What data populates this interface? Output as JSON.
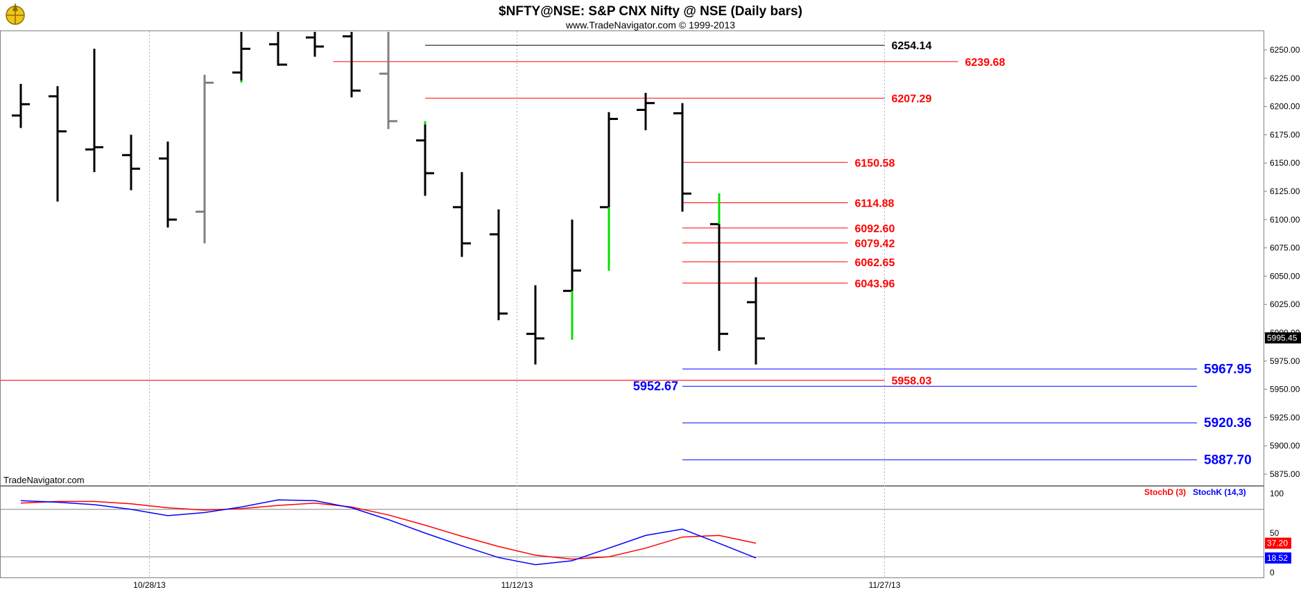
{
  "header": {
    "title": "$NFTY@NSE:  S&P CNX Nifty @ NSE  (Daily bars)",
    "subtitle": "www.TradeNavigator.com © 1999-2013",
    "watermark": "TradeNavigator.com",
    "logo_icon": "compass-logo-icon"
  },
  "chart_data": [
    {
      "type": "ohlc",
      "price_range": [
        5855,
        6280
      ],
      "y_ticks": [
        "6250.00",
        "6225.00",
        "6200.00",
        "6175.00",
        "6150.00",
        "6125.00",
        "6100.00",
        "6075.00",
        "6050.00",
        "6025.00",
        "6000.00",
        "5975.00",
        "5950.00",
        "5925.00",
        "5900.00",
        "5875.00"
      ],
      "x_labels": [
        {
          "bar": 3.5,
          "label": "10/28/13"
        },
        {
          "bar": 13.5,
          "label": "11/12/13"
        },
        {
          "bar": 23.5,
          "label": "11/27/13"
        }
      ],
      "last_price": "5995.45",
      "bars": [
        {
          "o": 6192,
          "h": 6220,
          "l": 6181,
          "c": 6202,
          "color": "#000000"
        },
        {
          "o": 6209,
          "h": 6218,
          "l": 6116,
          "c": 6178,
          "color": "#000000"
        },
        {
          "o": 6162,
          "h": 6251,
          "l": 6142,
          "c": 6164,
          "color": "#000000"
        },
        {
          "o": 6157,
          "h": 6175,
          "l": 6126,
          "c": 6145,
          "color": "#000000"
        },
        {
          "o": 6154,
          "h": 6169,
          "l": 6093,
          "c": 6100,
          "color": "#000000"
        },
        {
          "o": 6107,
          "h": 6228,
          "l": 6079,
          "c": 6221,
          "color": "#808080"
        },
        {
          "o": 6230,
          "h": 6290,
          "l": 6222,
          "c": 6251,
          "color": "#000000"
        },
        {
          "o": 6255,
          "h": 6290,
          "l": 6236,
          "c": 6237,
          "color": "#000000"
        },
        {
          "o": 6261,
          "h": 6290,
          "l": 6244,
          "c": 6253,
          "color": "#000000"
        },
        {
          "o": 6262,
          "h": 6290,
          "l": 6208,
          "c": 6214,
          "color": "#000000"
        },
        {
          "o": 6229,
          "h": 6290,
          "l": 6180,
          "c": 6187,
          "color": "#808080"
        },
        {
          "o": 6170,
          "h": 6187,
          "l": 6121,
          "c": 6141,
          "color": "#000000"
        },
        {
          "o": 6111,
          "h": 6142,
          "l": 6067,
          "c": 6079,
          "color": "#000000"
        },
        {
          "o": 6087,
          "h": 6109,
          "l": 6011,
          "c": 6017,
          "color": "#000000"
        },
        {
          "o": 5999,
          "h": 6042,
          "l": 5972,
          "c": 5995,
          "color": "#000000"
        },
        {
          "o": 6037,
          "h": 6100,
          "l": 5994,
          "c": 6055,
          "color": "#000000"
        },
        {
          "o": 6111,
          "h": 6195,
          "l": 6055,
          "c": 6189,
          "color": "#000000"
        },
        {
          "o": 6197,
          "h": 6212,
          "l": 6179,
          "c": 6203,
          "color": "#000000"
        },
        {
          "o": 6194,
          "h": 6203,
          "l": 6107,
          "c": 6123,
          "color": "#000000"
        },
        {
          "o": 6096,
          "h": 6123,
          "l": 5984,
          "c": 5999,
          "color": "#000000"
        },
        {
          "o": 6027,
          "h": 6049,
          "l": 5972,
          "c": 5995,
          "color": "#000000"
        }
      ],
      "green_marks": [
        {
          "bar": 6,
          "top": 6223,
          "bottom": 6221
        },
        {
          "bar": 11,
          "top": 6187,
          "bottom": 6184
        },
        {
          "bar": 15,
          "top": 6037,
          "bottom": 5994
        },
        {
          "bar": 16,
          "top": 6111,
          "bottom": 6055
        },
        {
          "bar": 19,
          "top": 6123,
          "bottom": 6096
        }
      ],
      "levels": [
        {
          "price": 6254.14,
          "label": "6254.14",
          "color": "#000000",
          "from_bar": 11,
          "to_bar": 23.5,
          "label_side": "right"
        },
        {
          "price": 6239.68,
          "label": "6239.68",
          "color": "#ff0000",
          "from_bar": 8.5,
          "to_bar": 25.5,
          "label_side": "right"
        },
        {
          "price": 6207.29,
          "label": "6207.29",
          "color": "#ff0000",
          "from_bar": 11,
          "to_bar": 23.5,
          "label_side": "right"
        },
        {
          "price": 6150.58,
          "label": "6150.58",
          "color": "#ff0000",
          "from_bar": 18,
          "to_bar": 22.5,
          "label_side": "right"
        },
        {
          "price": 6114.88,
          "label": "6114.88",
          "color": "#ff0000",
          "from_bar": 18,
          "to_bar": 22.5,
          "label_side": "right"
        },
        {
          "price": 6092.6,
          "label": "6092.60",
          "color": "#ff0000",
          "from_bar": 18,
          "to_bar": 22.5,
          "label_side": "right"
        },
        {
          "price": 6079.42,
          "label": "6079.42",
          "color": "#ff0000",
          "from_bar": 18,
          "to_bar": 22.5,
          "label_side": "right"
        },
        {
          "price": 6062.65,
          "label": "6062.65",
          "color": "#ff0000",
          "from_bar": 18,
          "to_bar": 22.5,
          "label_side": "right"
        },
        {
          "price": 6043.96,
          "label": "6043.96",
          "color": "#ff0000",
          "from_bar": 18,
          "to_bar": 22.5,
          "label_side": "right"
        },
        {
          "price": 5967.95,
          "label": "5967.95",
          "color": "#0000ff",
          "from_bar": 18,
          "to_bar": 32,
          "label_side": "right"
        },
        {
          "price": 5958.03,
          "label": "5958.03",
          "color": "#ff0000",
          "from_bar": -1,
          "to_bar": 23.5,
          "label_side": "right"
        },
        {
          "price": 5952.67,
          "label": "5952.67",
          "color": "#0000ff",
          "from_bar": 18,
          "to_bar": 32,
          "label_side": "left"
        },
        {
          "price": 5920.36,
          "label": "5920.36",
          "color": "#0000ff",
          "from_bar": 18,
          "to_bar": 32,
          "label_side": "right"
        },
        {
          "price": 5887.7,
          "label": "5887.70",
          "color": "#0000ff",
          "from_bar": 18,
          "to_bar": 32,
          "label_side": "right"
        }
      ]
    },
    {
      "type": "line",
      "y_range": [
        0,
        100
      ],
      "y_ticks": [
        "100",
        "50",
        "0"
      ],
      "ref_lines": [
        80,
        20
      ],
      "legend_position": "top-right",
      "series": [
        {
          "name": "StochD (3)",
          "color": "#ff0000",
          "last": "37.20",
          "values": [
            88,
            90,
            90,
            87,
            82,
            79,
            81,
            85,
            88,
            83,
            73,
            60,
            46,
            33,
            22,
            17,
            20,
            31,
            45,
            47,
            37.2
          ]
        },
        {
          "name": "StochK (14,3)",
          "color": "#0000ff",
          "last": "18.52",
          "values": [
            91,
            89,
            86,
            80,
            72,
            76,
            83,
            92,
            91,
            82,
            67,
            50,
            34,
            19,
            10,
            15,
            31,
            47,
            55,
            37,
            18.52
          ]
        }
      ]
    }
  ]
}
